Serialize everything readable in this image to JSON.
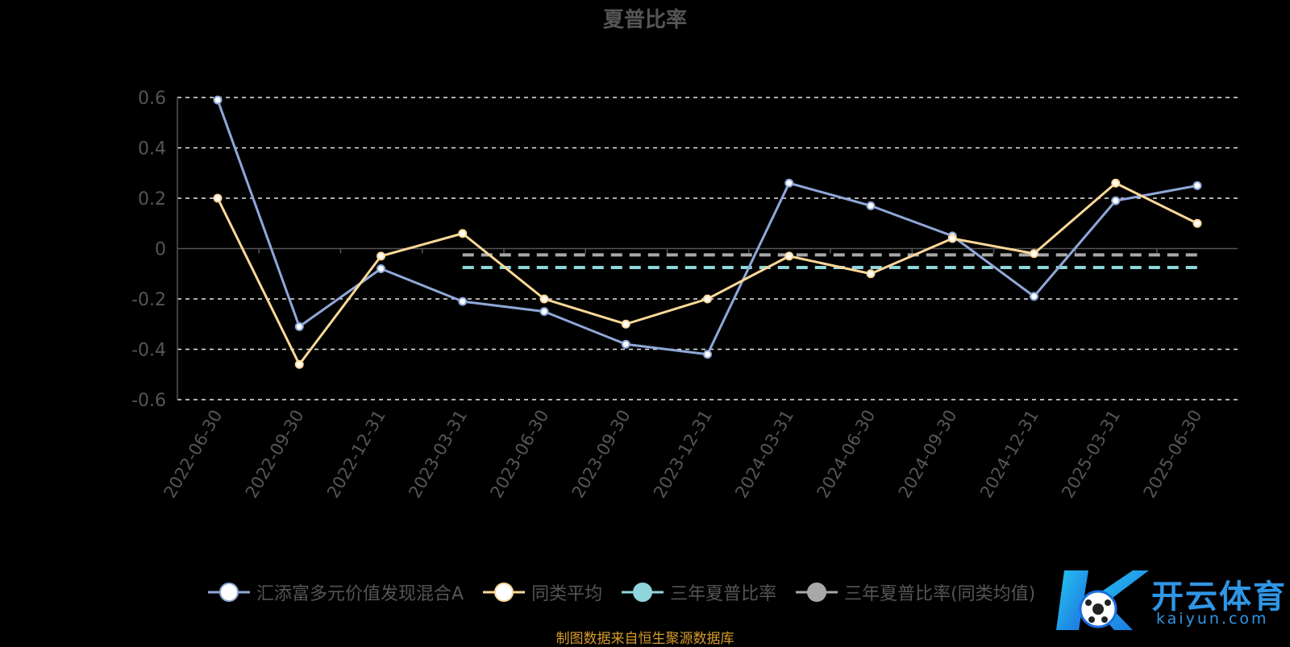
{
  "chart_data": {
    "type": "line",
    "title": "夏普比率",
    "categories": [
      "2022-06-30",
      "2022-09-30",
      "2022-12-31",
      "2023-03-31",
      "2023-06-30",
      "2023-09-30",
      "2023-12-31",
      "2024-03-31",
      "2024-06-30",
      "2024-09-30",
      "2024-12-31",
      "2025-03-31",
      "2025-06-30"
    ],
    "ylim": [
      -0.6,
      0.6
    ],
    "yticks": [
      -0.6,
      -0.4,
      -0.2,
      0,
      0.2,
      0.4,
      0.6
    ],
    "ytick_labels": [
      "-0.6",
      "-0.4",
      "-0.2",
      "0",
      "0.2",
      "0.4",
      "0.6"
    ],
    "grid": true,
    "legend_position": "bottom",
    "series": [
      {
        "name": "汇添富多元价值发现混合A",
        "color": "#8fa8d8",
        "values": [
          0.59,
          -0.31,
          -0.08,
          -0.21,
          -0.25,
          -0.38,
          -0.42,
          0.26,
          0.17,
          0.05,
          -0.19,
          0.19,
          0.25
        ]
      },
      {
        "name": "同类平均",
        "color": "#fcd898",
        "values": [
          0.2,
          -0.46,
          -0.03,
          0.06,
          -0.2,
          -0.3,
          -0.2,
          -0.03,
          -0.1,
          0.04,
          -0.02,
          0.26,
          0.1
        ]
      },
      {
        "name": "三年夏普比率",
        "color": "#8fd6dc",
        "dashed": true,
        "start_category": "2023-03-31",
        "end_category": "2025-06-30",
        "value": -0.075
      },
      {
        "name": "三年夏普比率(同类均值)",
        "color": "#a8a8a8",
        "dashed": true,
        "start_category": "2023-03-31",
        "end_category": "2025-06-30",
        "value": -0.025
      }
    ],
    "source": "制图数据来自恒生聚源数据库"
  },
  "watermark": {
    "cn": "开云体育",
    "en": "kaiyun.com",
    "color": "#2f96e6"
  }
}
